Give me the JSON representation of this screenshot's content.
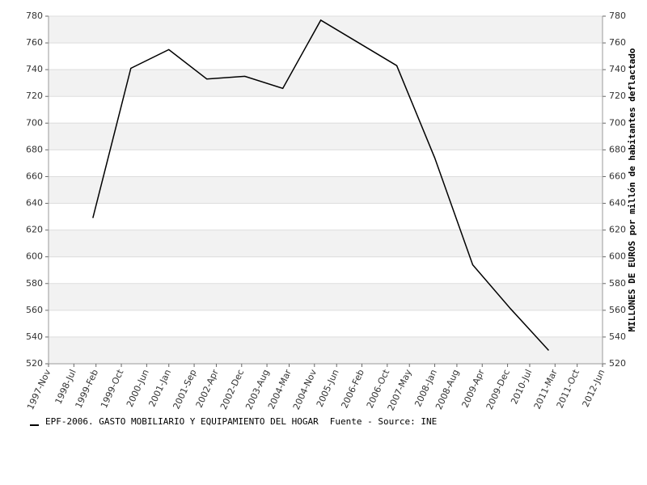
{
  "chart_data": {
    "type": "line",
    "y_label": "MILLONES DE EUROS por millón de habitantes deflactado",
    "source": "Fuente - Source: INE",
    "x": [
      1999,
      2000,
      2001,
      2002,
      2003,
      2004,
      2005,
      2006,
      2007,
      2008,
      2009,
      2010,
      2011
    ],
    "series": [
      {
        "name": "EPF-2006. GASTO MOBILIARIO Y EQUIPAMIENTO DEL HOGAR",
        "color": "#000000",
        "values": [
          629,
          741,
          755,
          733,
          735,
          726,
          777,
          760,
          743,
          674,
          594,
          561,
          530
        ]
      }
    ],
    "xlim": [
      1997.833,
      2012.417
    ],
    "xticks": [
      {
        "value": 1997.833,
        "label": "1997-Nov"
      },
      {
        "value": 1998.5,
        "label": "1998-Jul"
      },
      {
        "value": 1999.083,
        "label": "1999-Feb"
      },
      {
        "value": 1999.75,
        "label": "1999-Oct"
      },
      {
        "value": 2000.417,
        "label": "2000-Jun"
      },
      {
        "value": 2001.0,
        "label": "2001-Jan"
      },
      {
        "value": 2001.667,
        "label": "2001-Sep"
      },
      {
        "value": 2002.25,
        "label": "2002-Apr"
      },
      {
        "value": 2002.917,
        "label": "2002-Dec"
      },
      {
        "value": 2003.583,
        "label": "2003-Aug"
      },
      {
        "value": 2004.167,
        "label": "2004-Mar"
      },
      {
        "value": 2004.833,
        "label": "2004-Nov"
      },
      {
        "value": 2005.417,
        "label": "2005-Jun"
      },
      {
        "value": 2006.083,
        "label": "2006-Feb"
      },
      {
        "value": 2006.75,
        "label": "2006-Oct"
      },
      {
        "value": 2007.333,
        "label": "2007-May"
      },
      {
        "value": 2008.0,
        "label": "2008-Jan"
      },
      {
        "value": 2008.583,
        "label": "2008-Aug"
      },
      {
        "value": 2009.25,
        "label": "2009-Apr"
      },
      {
        "value": 2009.917,
        "label": "2009-Dec"
      },
      {
        "value": 2010.5,
        "label": "2010-Jul"
      },
      {
        "value": 2011.167,
        "label": "2011-Mar"
      },
      {
        "value": 2011.75,
        "label": "2011-Oct"
      },
      {
        "value": 2012.417,
        "label": "2012-Jun"
      }
    ],
    "ylim": [
      520,
      780
    ],
    "yticks": [
      520,
      540,
      560,
      580,
      600,
      620,
      640,
      660,
      680,
      700,
      720,
      740,
      760,
      780
    ],
    "y2lim": [
      520,
      780
    ],
    "y2ticks": [
      520,
      540,
      560,
      580,
      600,
      620,
      640,
      660,
      680,
      700,
      720,
      740,
      760,
      780
    ],
    "grid": true,
    "banded": true,
    "legend": "bottom-left"
  }
}
